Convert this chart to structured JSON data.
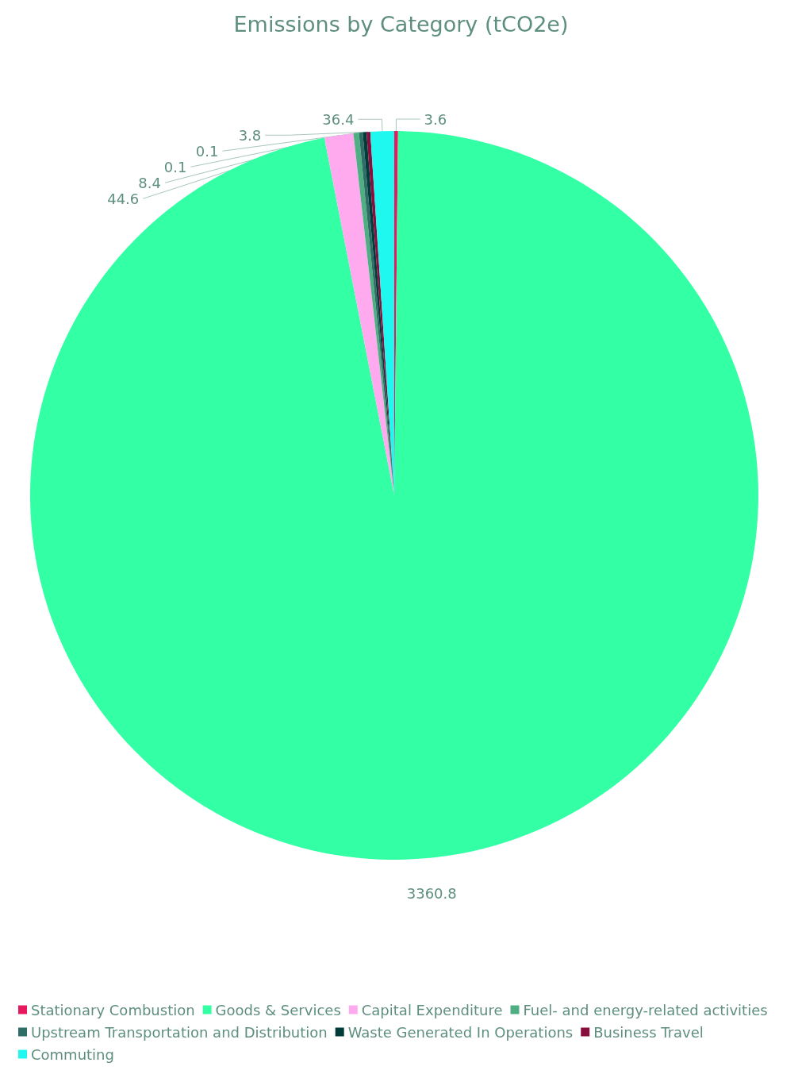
{
  "chart_data": {
    "type": "pie",
    "title": "Emissions by Category (tCO2e)",
    "categories": [
      "Stationary Combustion",
      "Goods & Services",
      "Capital Expenditure",
      "Fuel- and energy-related activities",
      "Upstream Transportation and Distribution",
      "Waste Generated In Operations",
      "Business Travel",
      "Commuting"
    ],
    "values": [
      3.6,
      3360.8,
      44.6,
      8.4,
      0.1,
      0.1,
      3.8,
      36.4
    ],
    "colors": [
      "#e8185f",
      "#33ffa5",
      "#ffaaee",
      "#4daf82",
      "#2e6e66",
      "#003c3a",
      "#880e3e",
      "#1ef8ee"
    ],
    "data_labels": true,
    "legend": "bottom"
  }
}
